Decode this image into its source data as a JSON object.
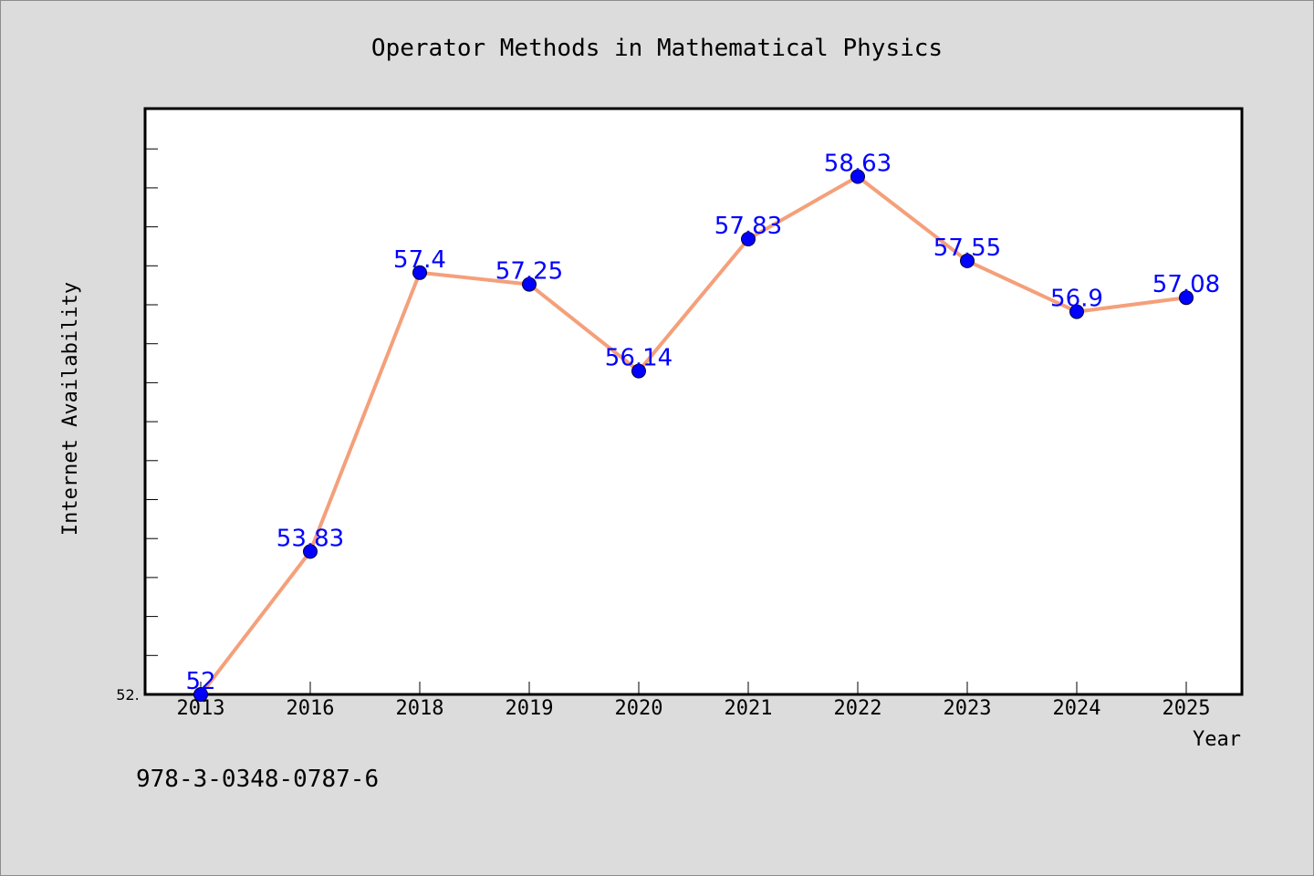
{
  "chart_data": {
    "type": "line",
    "title": "Operator Methods in Mathematical Physics",
    "xlabel": "Year",
    "ylabel": "Internet Availability",
    "categories": [
      "2013",
      "2016",
      "2018",
      "2019",
      "2020",
      "2021",
      "2022",
      "2023",
      "2024",
      "2025"
    ],
    "series": [
      {
        "values": [
          52,
          53.83,
          57.4,
          57.25,
          56.14,
          57.83,
          58.63,
          57.55,
          56.9,
          57.08
        ],
        "labels": [
          "52",
          "53.83",
          "57.4",
          "57.25",
          "56.14",
          "57.83",
          "58.63",
          "57.55",
          "56.9",
          "57.08"
        ],
        "line_color": "#f4a07a",
        "marker_color": "#0000ff"
      }
    ],
    "ylim": [
      52,
      59.5
    ],
    "ytick_labels": [
      "52."
    ],
    "grid": false,
    "legend": "none"
  },
  "footer": {
    "isbn": "978-3-0348-0787-6"
  },
  "colors": {
    "background": "#dcdcdc",
    "plot_background": "#ffffff",
    "line": "#f4a07a",
    "marker": "#0000ff",
    "data_label": "#0000ff"
  }
}
